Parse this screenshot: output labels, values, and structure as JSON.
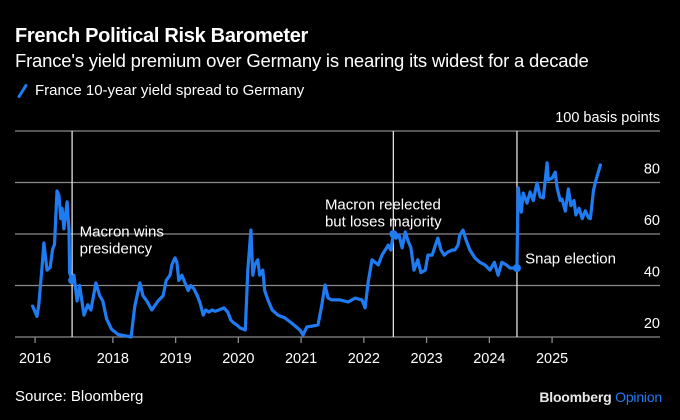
{
  "header": {
    "title": "French Political Risk Barometer",
    "subtitle": "France's yield premium over Germany is nearing its widest for a decade"
  },
  "legend": {
    "label": "France 10-year yield spread to Germany",
    "icon": "slash-line-icon"
  },
  "footer": {
    "source": "Source: Bloomberg",
    "brand_main": "Bloomberg",
    "brand_accent": "Opinion"
  },
  "colors": {
    "background": "#000000",
    "line": "#1f7bf2",
    "grid": "#8a8a8a",
    "text": "#ffffff",
    "brand_accent": "#1f7bf2"
  },
  "chart_data": {
    "type": "line",
    "title": "French Political Risk Barometer",
    "subtitle": "France's yield premium over Germany is nearing its widest for a decade",
    "xlabel": "",
    "ylabel": "100 basis points",
    "unit_label": "100 basis points",
    "xlim": [
      2016.44,
      2026.72
    ],
    "ylim": [
      20,
      100
    ],
    "grid": true,
    "legend_position": "top-left",
    "y_ticks": [
      {
        "value": 100,
        "label": "100 basis points"
      },
      {
        "value": 80,
        "label": "80"
      },
      {
        "value": 60,
        "label": "60"
      },
      {
        "value": 40,
        "label": "40"
      },
      {
        "value": 20,
        "label": "20"
      }
    ],
    "x_ticks": [
      {
        "value": 2016.76,
        "label": "2016"
      },
      {
        "value": 2018,
        "label": "2018"
      },
      {
        "value": 2019,
        "label": "2019"
      },
      {
        "value": 2020,
        "label": "2020"
      },
      {
        "value": 2021,
        "label": "2021"
      },
      {
        "value": 2022,
        "label": "2022"
      },
      {
        "value": 2023,
        "label": "2023"
      },
      {
        "value": 2024,
        "label": "2024"
      },
      {
        "value": 2025,
        "label": "2025"
      }
    ],
    "annotations": [
      {
        "x": 2017.35,
        "y": 42,
        "lines": [
          "Macron wins",
          "presidency"
        ],
        "label_x": 2017.47,
        "label_y": 59
      },
      {
        "x": 2022.47,
        "y": 60,
        "lines": [
          "Macron reelected",
          "but loses majority"
        ],
        "label_x": 2021.38,
        "label_y": 69.5
      },
      {
        "x": 2024.44,
        "y": 46.8,
        "lines": [
          "Snap election"
        ],
        "label_x": 2024.57,
        "label_y": 48.5
      }
    ],
    "series": [
      {
        "name": "France 10-year yield spread to Germany",
        "x": [
          2016.72,
          2016.79,
          2016.82,
          2016.87,
          2016.9,
          2016.95,
          2017.0,
          2017.04,
          2017.07,
          2017.11,
          2017.14,
          2017.17,
          2017.19,
          2017.22,
          2017.27,
          2017.3,
          2017.31,
          2017.35,
          2017.38,
          2017.43,
          2017.47,
          2017.54,
          2017.6,
          2017.65,
          2017.73,
          2017.79,
          2017.84,
          2017.9,
          2017.98,
          2018.08,
          2018.19,
          2018.29,
          2018.35,
          2018.43,
          2018.48,
          2018.54,
          2018.62,
          2018.72,
          2018.8,
          2018.85,
          2018.91,
          2018.94,
          2018.99,
          2019.02,
          2019.05,
          2019.1,
          2019.15,
          2019.2,
          2019.24,
          2019.29,
          2019.34,
          2019.39,
          2019.44,
          2019.48,
          2019.53,
          2019.58,
          2019.63,
          2019.69,
          2019.77,
          2019.83,
          2019.88,
          2019.93,
          2019.98,
          2020.03,
          2020.11,
          2020.15,
          2020.2,
          2020.23,
          2020.26,
          2020.31,
          2020.34,
          2020.39,
          2020.42,
          2020.47,
          2020.54,
          2020.63,
          2020.74,
          2020.85,
          2020.98,
          2021.03,
          2021.09,
          2021.19,
          2021.27,
          2021.33,
          2021.38,
          2021.43,
          2021.49,
          2021.62,
          2021.75,
          2021.86,
          2021.97,
          2022.02,
          2022.07,
          2022.13,
          2022.18,
          2022.23,
          2022.29,
          2022.34,
          2022.39,
          2022.43,
          2022.47,
          2022.51,
          2022.56,
          2022.61,
          2022.66,
          2022.7,
          2022.75,
          2022.8,
          2022.86,
          2022.91,
          2022.98,
          2023.02,
          2023.09,
          2023.14,
          2023.18,
          2023.23,
          2023.28,
          2023.34,
          2023.41,
          2023.45,
          2023.5,
          2023.53,
          2023.58,
          2023.63,
          2023.69,
          2023.77,
          2023.85,
          2023.93,
          2024.01,
          2024.08,
          2024.14,
          2024.2,
          2024.27,
          2024.33,
          2024.4,
          2024.44,
          2024.46,
          2024.51,
          2024.54,
          2024.6,
          2024.65,
          2024.7,
          2024.76,
          2024.81,
          2024.86,
          2024.92,
          2024.94,
          2025.0,
          2025.05,
          2025.08,
          2025.13,
          2025.16,
          2025.21,
          2025.26,
          2025.3,
          2025.35,
          2025.38,
          2025.43,
          2025.48,
          2025.53,
          2025.58,
          2025.61,
          2025.66,
          2025.7,
          2025.77
        ],
        "values": [
          32,
          28,
          32.5,
          47,
          56.5,
          46,
          47,
          54,
          56,
          76.7,
          75,
          66,
          70,
          62,
          72.5,
          61.5,
          45,
          42,
          44,
          34,
          40,
          28.5,
          32.5,
          30.5,
          41,
          36,
          34,
          27,
          23,
          21,
          20.5,
          20,
          32,
          41,
          36,
          34,
          30.5,
          34,
          36,
          42,
          44,
          48,
          50.7,
          49,
          42,
          44,
          41,
          38,
          40,
          38.8,
          36.3,
          33.2,
          28.5,
          30.5,
          29.7,
          30.5,
          30,
          30.5,
          31.3,
          29.7,
          26.6,
          25.4,
          24.6,
          23.5,
          22.7,
          46,
          61.5,
          44,
          48,
          50,
          44,
          46,
          38,
          34.4,
          30.5,
          28.5,
          27.4,
          25.4,
          22.7,
          20.8,
          23.9,
          24.3,
          24.7,
          32.4,
          40.2,
          35.1,
          34.4,
          34.4,
          33.6,
          35.1,
          34.4,
          31.3,
          41.4,
          50,
          49,
          48,
          51.8,
          53.8,
          55.7,
          53.8,
          59.6,
          58.4,
          59.6,
          54.6,
          60.8,
          57.6,
          54.6,
          46,
          50,
          45,
          46,
          51.8,
          51.8,
          55.7,
          58.4,
          53.8,
          51.8,
          53,
          53.8,
          53.8,
          55.7,
          59.6,
          61.5,
          57.6,
          53.8,
          50.7,
          49,
          48,
          46,
          49,
          44,
          49,
          48,
          46.8,
          46.8,
          46.8,
          78,
          68.5,
          75.9,
          72,
          76.3,
          73,
          79.8,
          74.4,
          74,
          87.6,
          81,
          81.7,
          84,
          78,
          73,
          73.5,
          68.9,
          77.5,
          71,
          73,
          67.4,
          70,
          66,
          69,
          66.3,
          66,
          77,
          81,
          86.8
        ]
      }
    ]
  }
}
